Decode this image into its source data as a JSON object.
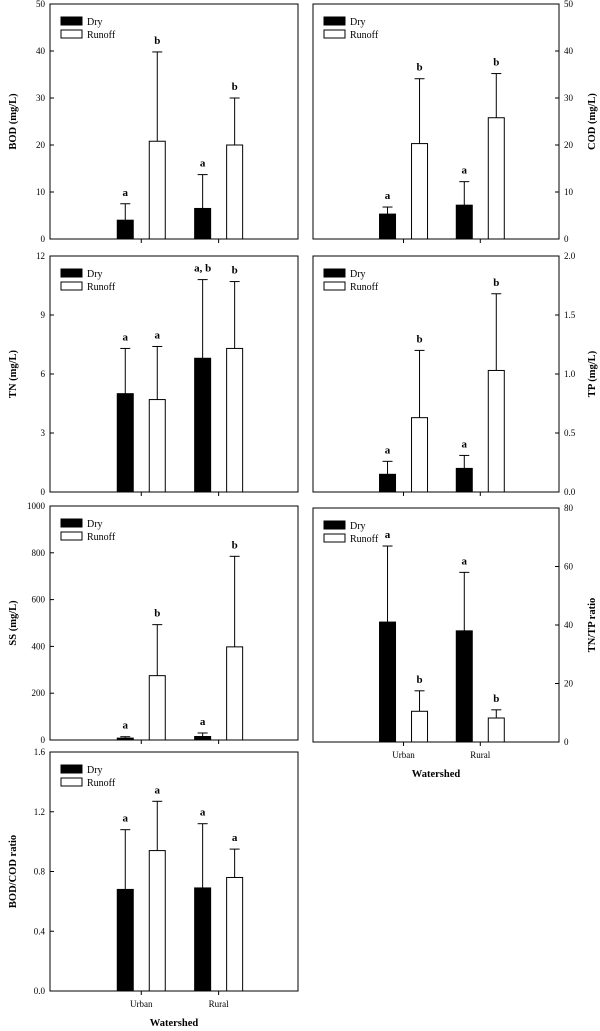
{
  "xlabel": "Watershed",
  "legend": {
    "dry": "Dry",
    "runoff": "Runoff"
  },
  "colors": {
    "dry": "#000000",
    "runoff": "#ffffff",
    "stroke": "#000000"
  },
  "chart_data": [
    {
      "type": "bar",
      "panel": "BOD",
      "categories": [
        "Urban",
        "Rural"
      ],
      "series": [
        {
          "name": "Dry",
          "values": [
            4.0,
            6.5
          ],
          "error": [
            3.5,
            7.2
          ],
          "labels": [
            "a",
            "a"
          ]
        },
        {
          "name": "Runoff",
          "values": [
            20.8,
            20.0
          ],
          "error": [
            19.0,
            10.0
          ],
          "labels": [
            "b",
            "b"
          ]
        }
      ],
      "ylabel": "BOD (mg/L)",
      "ylim": [
        0,
        50
      ],
      "yticks": [
        0,
        10,
        20,
        30,
        40,
        50
      ],
      "yaxis_side": "left",
      "show_category_labels": false,
      "legend_position": "top-left",
      "grid": false
    },
    {
      "type": "bar",
      "panel": "COD",
      "categories": [
        "Urban",
        "Rural"
      ],
      "series": [
        {
          "name": "Dry",
          "values": [
            5.3,
            7.2
          ],
          "error": [
            1.5,
            5.0
          ],
          "labels": [
            "a",
            "a"
          ]
        },
        {
          "name": "Runoff",
          "values": [
            20.3,
            25.8
          ],
          "error": [
            13.8,
            9.4
          ],
          "labels": [
            "b",
            "b"
          ]
        }
      ],
      "ylabel": "COD (mg/L)",
      "ylim": [
        0,
        50
      ],
      "yticks": [
        0,
        10,
        20,
        30,
        40,
        50
      ],
      "yaxis_side": "right",
      "show_category_labels": false,
      "legend_position": "top-left",
      "grid": false
    },
    {
      "type": "bar",
      "panel": "TN",
      "categories": [
        "Urban",
        "Rural"
      ],
      "series": [
        {
          "name": "Dry",
          "values": [
            5.0,
            6.8
          ],
          "error": [
            2.3,
            4.0
          ],
          "labels": [
            "a",
            "a, b"
          ]
        },
        {
          "name": "Runoff",
          "values": [
            4.7,
            7.3
          ],
          "error": [
            2.7,
            3.4
          ],
          "labels": [
            "a",
            "b"
          ]
        }
      ],
      "ylabel": "TN (mg/L)",
      "ylim": [
        0,
        12
      ],
      "yticks": [
        0,
        3,
        6,
        9,
        12
      ],
      "yaxis_side": "left",
      "show_category_labels": false,
      "legend_position": "top-left",
      "grid": false
    },
    {
      "type": "bar",
      "panel": "TP",
      "categories": [
        "Urban",
        "Rural"
      ],
      "series": [
        {
          "name": "Dry",
          "values": [
            0.15,
            0.2
          ],
          "error": [
            0.11,
            0.11
          ],
          "labels": [
            "a",
            "a"
          ]
        },
        {
          "name": "Runoff",
          "values": [
            0.63,
            1.03
          ],
          "error": [
            0.57,
            0.65
          ],
          "labels": [
            "b",
            "b"
          ]
        }
      ],
      "ylabel": "TP (mg/L)",
      "ylim": [
        0,
        2.0
      ],
      "yticks": [
        0.0,
        0.5,
        1.0,
        1.5,
        2.0
      ],
      "ytick_labels": [
        "0.0",
        "0.5",
        "1.0",
        "1.5",
        "2.0"
      ],
      "yaxis_side": "right",
      "show_category_labels": false,
      "legend_position": "top-left",
      "grid": false
    },
    {
      "type": "bar",
      "panel": "SS",
      "categories": [
        "Urban",
        "Rural"
      ],
      "series": [
        {
          "name": "Dry",
          "values": [
            8,
            15
          ],
          "error": [
            6,
            15
          ],
          "labels": [
            "a",
            "a"
          ]
        },
        {
          "name": "Runoff",
          "values": [
            275,
            398
          ],
          "error": [
            218,
            387
          ],
          "labels": [
            "b",
            "b"
          ]
        }
      ],
      "ylabel": "SS (mg/L)",
      "ylim": [
        0,
        1000
      ],
      "yticks": [
        0,
        200,
        400,
        600,
        800,
        1000
      ],
      "yaxis_side": "left",
      "show_category_labels": false,
      "legend_position": "top-left",
      "grid": false
    },
    {
      "type": "bar",
      "panel": "TN/TP",
      "categories": [
        "Urban",
        "Rural"
      ],
      "series": [
        {
          "name": "Dry",
          "values": [
            41,
            38
          ],
          "error": [
            26,
            20
          ],
          "labels": [
            "a",
            "a"
          ]
        },
        {
          "name": "Runoff",
          "values": [
            10.5,
            8.2
          ],
          "error": [
            7.0,
            2.8
          ],
          "labels": [
            "b",
            "b"
          ]
        }
      ],
      "ylabel": "TN/TP ratio",
      "ylim": [
        0,
        80
      ],
      "yticks": [
        0,
        20,
        40,
        60,
        80
      ],
      "yaxis_side": "right",
      "show_category_labels": true,
      "xlabel": "Watershed",
      "legend_position": "top-left",
      "grid": false
    },
    {
      "type": "bar",
      "panel": "BOD/COD",
      "categories": [
        "Urban",
        "Rural"
      ],
      "series": [
        {
          "name": "Dry",
          "values": [
            0.68,
            0.69
          ],
          "error": [
            0.4,
            0.43
          ],
          "labels": [
            "a",
            "a"
          ]
        },
        {
          "name": "Runoff",
          "values": [
            0.94,
            0.76
          ],
          "error": [
            0.33,
            0.19
          ],
          "labels": [
            "a",
            "a"
          ]
        }
      ],
      "ylabel": "BOD/COD ratio",
      "ylim": [
        0,
        1.6
      ],
      "yticks": [
        0.0,
        0.4,
        0.8,
        1.2,
        1.6
      ],
      "ytick_labels": [
        "0.0",
        "0.4",
        "0.8",
        "1.2",
        "1.6"
      ],
      "yaxis_side": "left",
      "show_category_labels": true,
      "xlabel": "Watershed",
      "legend_position": "top-left",
      "grid": false
    }
  ]
}
